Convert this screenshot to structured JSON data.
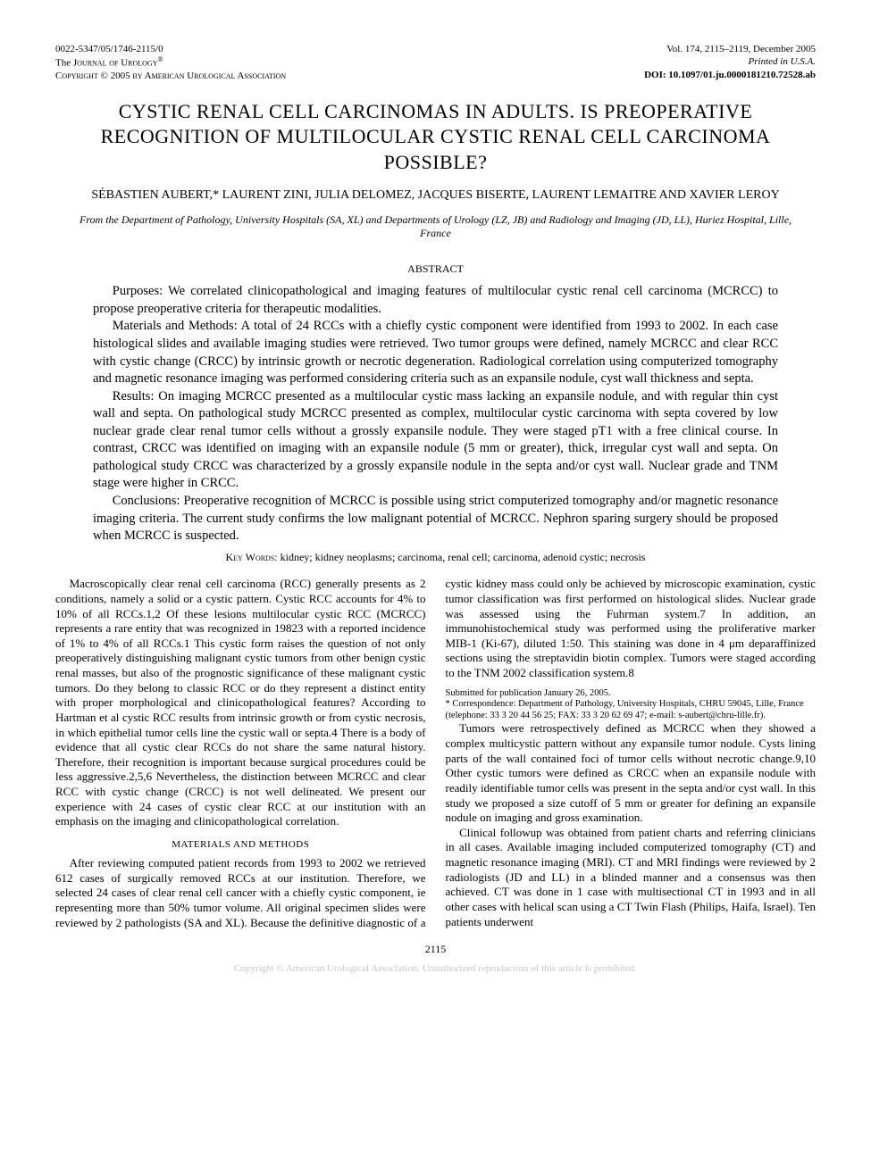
{
  "header": {
    "left": {
      "line1": "0022-5347/05/1746-2115/0",
      "line2_pre": "The ",
      "line2_caps": "Journal of Urology",
      "line2_sup": "®",
      "line3": "Copyright © 2005 by American Urological Association"
    },
    "right": {
      "line1": "Vol. 174, 2115–2119, December 2005",
      "line2": "Printed in U.S.A.",
      "line3_label": "DOI: ",
      "line3_value": "10.1097/01.ju.0000181210.72528.ab"
    }
  },
  "title": "CYSTIC RENAL CELL CARCINOMAS IN ADULTS. IS PREOPERATIVE RECOGNITION OF MULTILOCULAR CYSTIC RENAL CELL CARCINOMA POSSIBLE?",
  "authors": "SÉBASTIEN AUBERT,* LAURENT ZINI, JULIA DELOMEZ, JACQUES BISERTE, LAURENT LEMAITRE AND XAVIER LEROY",
  "affiliation": "From the Department of Pathology, University Hospitals (SA, XL) and Departments of Urology (LZ, JB) and Radiology and Imaging (JD, LL), Huriez Hospital, Lille, France",
  "abstract": {
    "label": "ABSTRACT",
    "p1": "Purposes: We correlated clinicopathological and imaging features of multilocular cystic renal cell carcinoma (MCRCC) to propose preoperative criteria for therapeutic modalities.",
    "p2": "Materials and Methods: A total of 24 RCCs with a chiefly cystic component were identified from 1993 to 2002. In each case histological slides and available imaging studies were retrieved. Two tumor groups were defined, namely MCRCC and clear RCC with cystic change (CRCC) by intrinsic growth or necrotic degeneration. Radiological correlation using computerized tomography and magnetic resonance imaging was performed considering criteria such as an expansile nodule, cyst wall thickness and septa.",
    "p3": "Results: On imaging MCRCC presented as a multilocular cystic mass lacking an expansile nodule, and with regular thin cyst wall and septa. On pathological study MCRCC presented as complex, multilocular cystic carcinoma with septa covered by low nuclear grade clear renal tumor cells without a grossly expansile nodule. They were staged pT1 with a free clinical course. In contrast, CRCC was identified on imaging with an expansile nodule (5 mm or greater), thick, irregular cyst wall and septa. On pathological study CRCC was characterized by a grossly expansile nodule in the septa and/or cyst wall. Nuclear grade and TNM stage were higher in CRCC.",
    "p4": "Conclusions: Preoperative recognition of MCRCC is possible using strict computerized tomography and/or magnetic resonance imaging criteria. The current study confirms the low malignant potential of MCRCC. Nephron sparing surgery should be proposed when MCRCC is suspected."
  },
  "keywords": {
    "label": "Key Words:",
    "text": " kidney; kidney neoplasms; carcinoma, renal cell; carcinoma, adenoid cystic; necrosis"
  },
  "body": {
    "intro": "Macroscopically clear renal cell carcinoma (RCC) generally presents as 2 conditions, namely a solid or a cystic pattern. Cystic RCC accounts for 4% to 10% of all RCCs.1,2 Of these lesions multilocular cystic RCC (MCRCC) represents a rare entity that was recognized in 19823 with a reported incidence of 1% to 4% of all RCCs.1 This cystic form raises the question of not only preoperatively distinguishing malignant cystic tumors from other benign cystic renal masses, but also of the prognostic significance of these malignant cystic tumors. Do they belong to classic RCC or do they represent a distinct entity with proper morphological and clinicopathological features? According to Hartman et al cystic RCC results from intrinsic growth or from cystic necrosis, in which epithelial tumor cells line the cystic wall or septa.4 There is a body of evidence that all cystic clear RCCs do not share the same natural history. Therefore, their recognition is important because surgical procedures could be less aggressive.2,5,6 Nevertheless, the distinction between MCRCC and clear RCC with cystic change (CRCC) is not well delineated. We present our experience with 24 cases of cystic clear RCC at our institution with an emphasis on the imaging and clinicopathological correlation.",
    "mm_heading": "MATERIALS AND METHODS",
    "mm_p1": "After reviewing computed patient records from 1993 to 2002 we retrieved 612 cases of surgically removed RCCs at our institution. Therefore, we selected 24 cases of clear renal cell cancer with a chiefly cystic component, ie representing more than 50% tumor volume. All original specimen slides were reviewed by 2 pathologists (SA and XL). Because the definitive diagnostic of a cystic kidney mass could only be achieved by microscopic examination, cystic tumor classification was first performed on histological slides. Nuclear grade was assessed using the Fuhrman system.7 In addition, an immunohistochemical study was performed using the proliferative marker MIB-1 (Ki-67), diluted 1:50. This staining was done in 4 μm deparaffinized sections using the streptavidin biotin complex. Tumors were staged according to the TNM 2002 classification system.8",
    "mm_p2": "Tumors were retrospectively defined as MCRCC when they showed a complex multicystic pattern without any expansile tumor nodule. Cysts lining parts of the wall contained foci of tumor cells without necrotic change.9,10 Other cystic tumors were defined as CRCC when an expansile nodule with readily identifiable tumor cells was present in the septa and/or cyst wall. In this study we proposed a size cutoff of 5 mm or greater for defining an expansile nodule on imaging and gross examination.",
    "mm_p3": "Clinical followup was obtained from patient charts and referring clinicians in all cases. Available imaging included computerized tomography (CT) and magnetic resonance imaging (MRI). CT and MRI findings were reviewed by 2 radiologists (JD and LL) in a blinded manner and a consensus was then achieved. CT was done in 1 case with multisectional CT in 1993 and in all other cases with helical scan using a CT Twin Flash (Philips, Haifa, Israel). Ten patients underwent"
  },
  "footnotes": {
    "f1": "Submitted for publication January 26, 2005.",
    "f2": "* Correspondence: Department of Pathology, University Hospitals, CHRU 59045, Lille, France (telephone: 33 3 20 44 56 25; FAX: 33 3 20 62 69 47; e-mail: s-aubert@chru-lille.fr)."
  },
  "page_number": "2115",
  "footer_copyright": "Copyright © American Urological Association. Unauthorized reproduction of this article is prohibited."
}
